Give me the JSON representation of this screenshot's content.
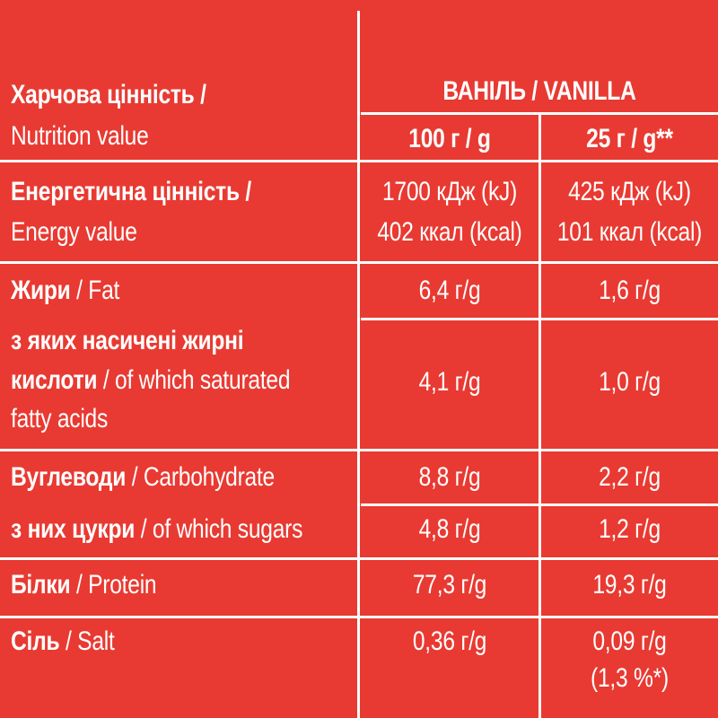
{
  "header": {
    "label_uk": "Харчова цінність /",
    "label_en": "Nutrition value",
    "flavor": "ВАНІЛЬ / VANILLA",
    "col_100": "100 г / g",
    "col_25": "25 г / g**"
  },
  "rows": {
    "energy": {
      "label_uk": "Енергетична цінність /",
      "label_en": "Energy value",
      "v100_line1": "1700 кДж (kJ)",
      "v100_line2": "402 ккал (kcal)",
      "v25_line1": "425 кДж (kJ)",
      "v25_line2": "101 ккал (kcal)"
    },
    "fat": {
      "label_uk": "Жири",
      "label_en": "/ Fat",
      "v100": "6,4 г/g",
      "v25": "1,6 г/g"
    },
    "saturated": {
      "label_uk_1": "з яких насичені жирні",
      "label_uk_2": "кислоти",
      "label_en_2": "/ of which saturated",
      "label_en_3": "fatty acids",
      "v100": "4,1 г/g",
      "v25": "1,0 г/g"
    },
    "carbohydrate": {
      "label_uk": "Вуглеводи",
      "label_en": "/ Carbohydrate",
      "v100": "8,8 г/g",
      "v25": "2,2 г/g"
    },
    "sugars": {
      "label_uk": "з них цукри",
      "label_en": "/ of which sugars",
      "v100": "4,8 г/g",
      "v25": "1,2 г/g"
    },
    "protein": {
      "label_uk": "Білки",
      "label_en": "/ Protein",
      "v100": "77,3 г/g",
      "v25": "19,3 г/g"
    },
    "salt": {
      "label_uk": "Сіль",
      "label_en": "/ Salt",
      "v100": "0,36 г/g",
      "v25_line1": "0,09 г/g",
      "v25_line2": "(1,3 %*)"
    }
  },
  "colors": {
    "background": "#e83a32",
    "lines": "#ffffff",
    "text": "#ffffff"
  }
}
